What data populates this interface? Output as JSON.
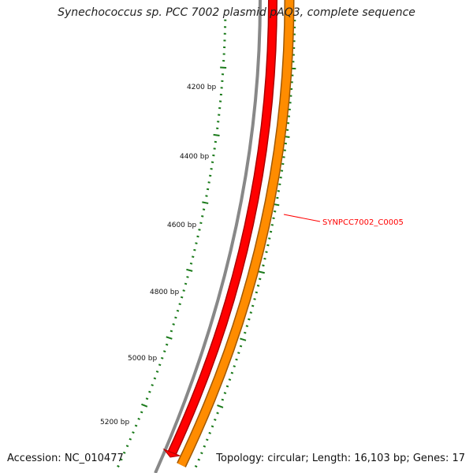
{
  "title": "Synechococcus sp. PCC 7002 plasmid pAQ3, complete sequence",
  "footer": {
    "accession": "Accession: NC_010477",
    "summary": "Topology: circular; Length: 16,103 bp; Genes: 17"
  },
  "colors": {
    "backbone": "#888888",
    "feature_red": "#ff0000",
    "feature_orange": "#ff8c00",
    "ticks": "#1a7a1a",
    "gene_label": "#ff0000"
  },
  "scale_labels": [
    "4200 bp",
    "4400 bp",
    "4600 bp",
    "4800 bp",
    "5000 bp",
    "5200 bp"
  ],
  "gene_labels": [
    "SYNPCC7002_C0005"
  ]
}
